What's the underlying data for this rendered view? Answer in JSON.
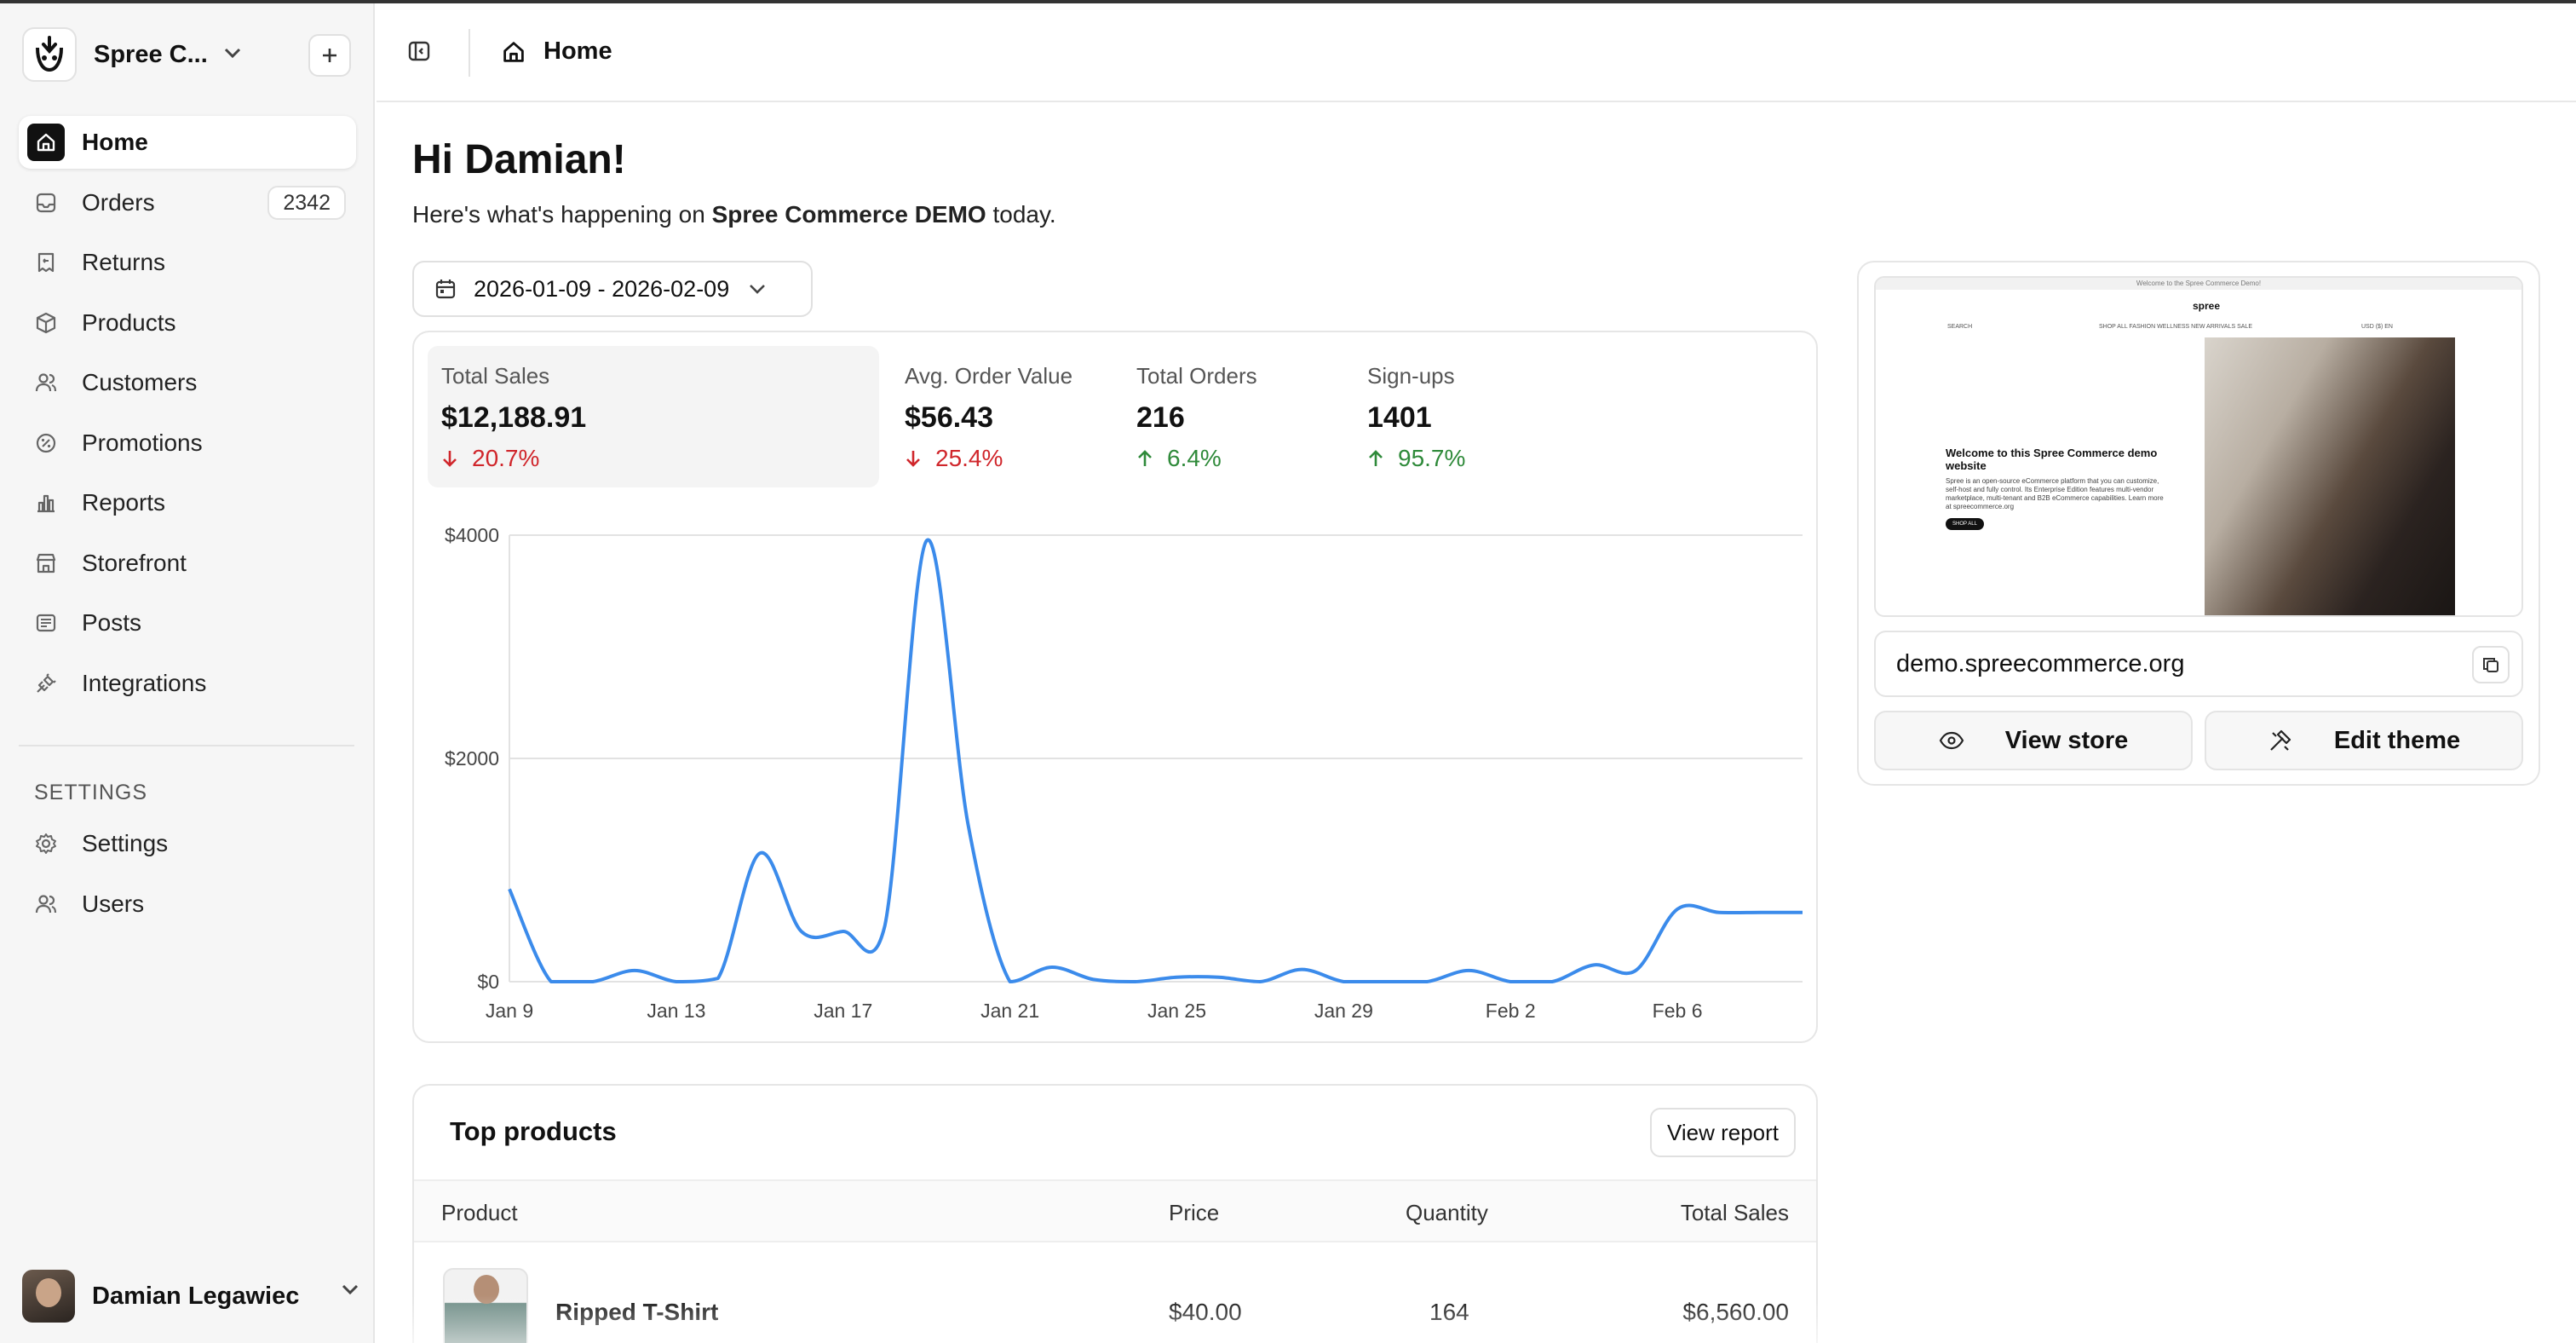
{
  "store": {
    "name": "Spree C..."
  },
  "nav": {
    "items": [
      {
        "label": "Home",
        "icon": "home-icon",
        "active": true
      },
      {
        "label": "Orders",
        "icon": "inbox-icon",
        "badge": "2342"
      },
      {
        "label": "Returns",
        "icon": "receipt-refund-icon"
      },
      {
        "label": "Products",
        "icon": "box-icon"
      },
      {
        "label": "Customers",
        "icon": "users-icon"
      },
      {
        "label": "Promotions",
        "icon": "discount-icon"
      },
      {
        "label": "Reports",
        "icon": "chart-bar-icon"
      },
      {
        "label": "Storefront",
        "icon": "building-store-icon"
      },
      {
        "label": "Posts",
        "icon": "article-icon"
      },
      {
        "label": "Integrations",
        "icon": "plug-icon"
      }
    ],
    "settings_section": "SETTINGS",
    "settings_items": [
      {
        "label": "Settings",
        "icon": "gear-icon"
      },
      {
        "label": "Users",
        "icon": "users-icon"
      }
    ]
  },
  "user": {
    "name": "Damian Legawiec"
  },
  "topbar": {
    "breadcrumb": "Home"
  },
  "main": {
    "greeting": "Hi Damian!",
    "subtext_prefix": "Here's what's happening on ",
    "store_name": "Spree Commerce DEMO",
    "subtext_suffix": " today.",
    "date_range": "2026-01-09 - 2026-02-09"
  },
  "stats": [
    {
      "label": "Total Sales",
      "value": "$12,188.91",
      "delta": "20.7%",
      "direction": "down"
    },
    {
      "label": "Avg. Order Value",
      "value": "$56.43",
      "delta": "25.4%",
      "direction": "down"
    },
    {
      "label": "Total Orders",
      "value": "216",
      "delta": "6.4%",
      "direction": "up"
    },
    {
      "label": "Sign-ups",
      "value": "1401",
      "delta": "95.7%",
      "direction": "up"
    }
  ],
  "chart_data": {
    "type": "line",
    "x": [
      "Jan 9",
      "Jan 10",
      "Jan 11",
      "Jan 12",
      "Jan 13",
      "Jan 14",
      "Jan 15",
      "Jan 16",
      "Jan 17",
      "Jan 18",
      "Jan 19",
      "Jan 20",
      "Jan 21",
      "Jan 22",
      "Jan 23",
      "Jan 24",
      "Jan 25",
      "Jan 26",
      "Jan 27",
      "Jan 28",
      "Jan 29",
      "Jan 30",
      "Jan 31",
      "Feb 1",
      "Feb 2",
      "Feb 3",
      "Feb 4",
      "Feb 5",
      "Feb 6",
      "Feb 7",
      "Feb 8",
      "Feb 9"
    ],
    "values": [
      830,
      0,
      0,
      100,
      0,
      30,
      1150,
      450,
      450,
      500,
      3950,
      1400,
      0,
      130,
      20,
      0,
      40,
      40,
      0,
      110,
      0,
      0,
      0,
      100,
      0,
      0,
      150,
      100,
      650,
      620,
      620,
      620
    ],
    "x_ticks": [
      "Jan 9",
      "Jan 13",
      "Jan 17",
      "Jan 21",
      "Jan 25",
      "Jan 29",
      "Feb 2",
      "Feb 6"
    ],
    "y_ticks": [
      "$0",
      "$2000",
      "$4000"
    ],
    "ylim": [
      0,
      4000
    ],
    "grid": true,
    "color": "#3b8beb"
  },
  "preview": {
    "banner": "Welcome to the Spree Commerce Demo!",
    "logo": "spree",
    "search": "SEARCH",
    "menu": "SHOP ALL   FASHION   WELLNESS   NEW ARRIVALS   SALE",
    "locale": "USD ($)  EN",
    "hero_title": "Welcome to this Spree Commerce demo website",
    "hero_body": "Spree is an open-source eCommerce platform that you can customize, self-host and fully control. Its Enterprise Edition features multi-vendor marketplace, multi-tenant and B2B eCommerce capabilities. Learn more at spreecommerce.org",
    "hero_button": "SHOP ALL",
    "url": "demo.spreecommerce.org",
    "view_store": "View store",
    "edit_theme": "Edit theme"
  },
  "top_products": {
    "title": "Top products",
    "view_report": "View report",
    "columns": [
      "Product",
      "Price",
      "Quantity",
      "Total Sales"
    ],
    "rows": [
      {
        "name": "Ripped T-Shirt",
        "price": "$40.00",
        "quantity": "164",
        "total": "$6,560.00"
      }
    ]
  },
  "colors": {
    "accent": "#111111",
    "down": "#d0262b",
    "up": "#2f8a3a",
    "line": "#3b8beb"
  }
}
